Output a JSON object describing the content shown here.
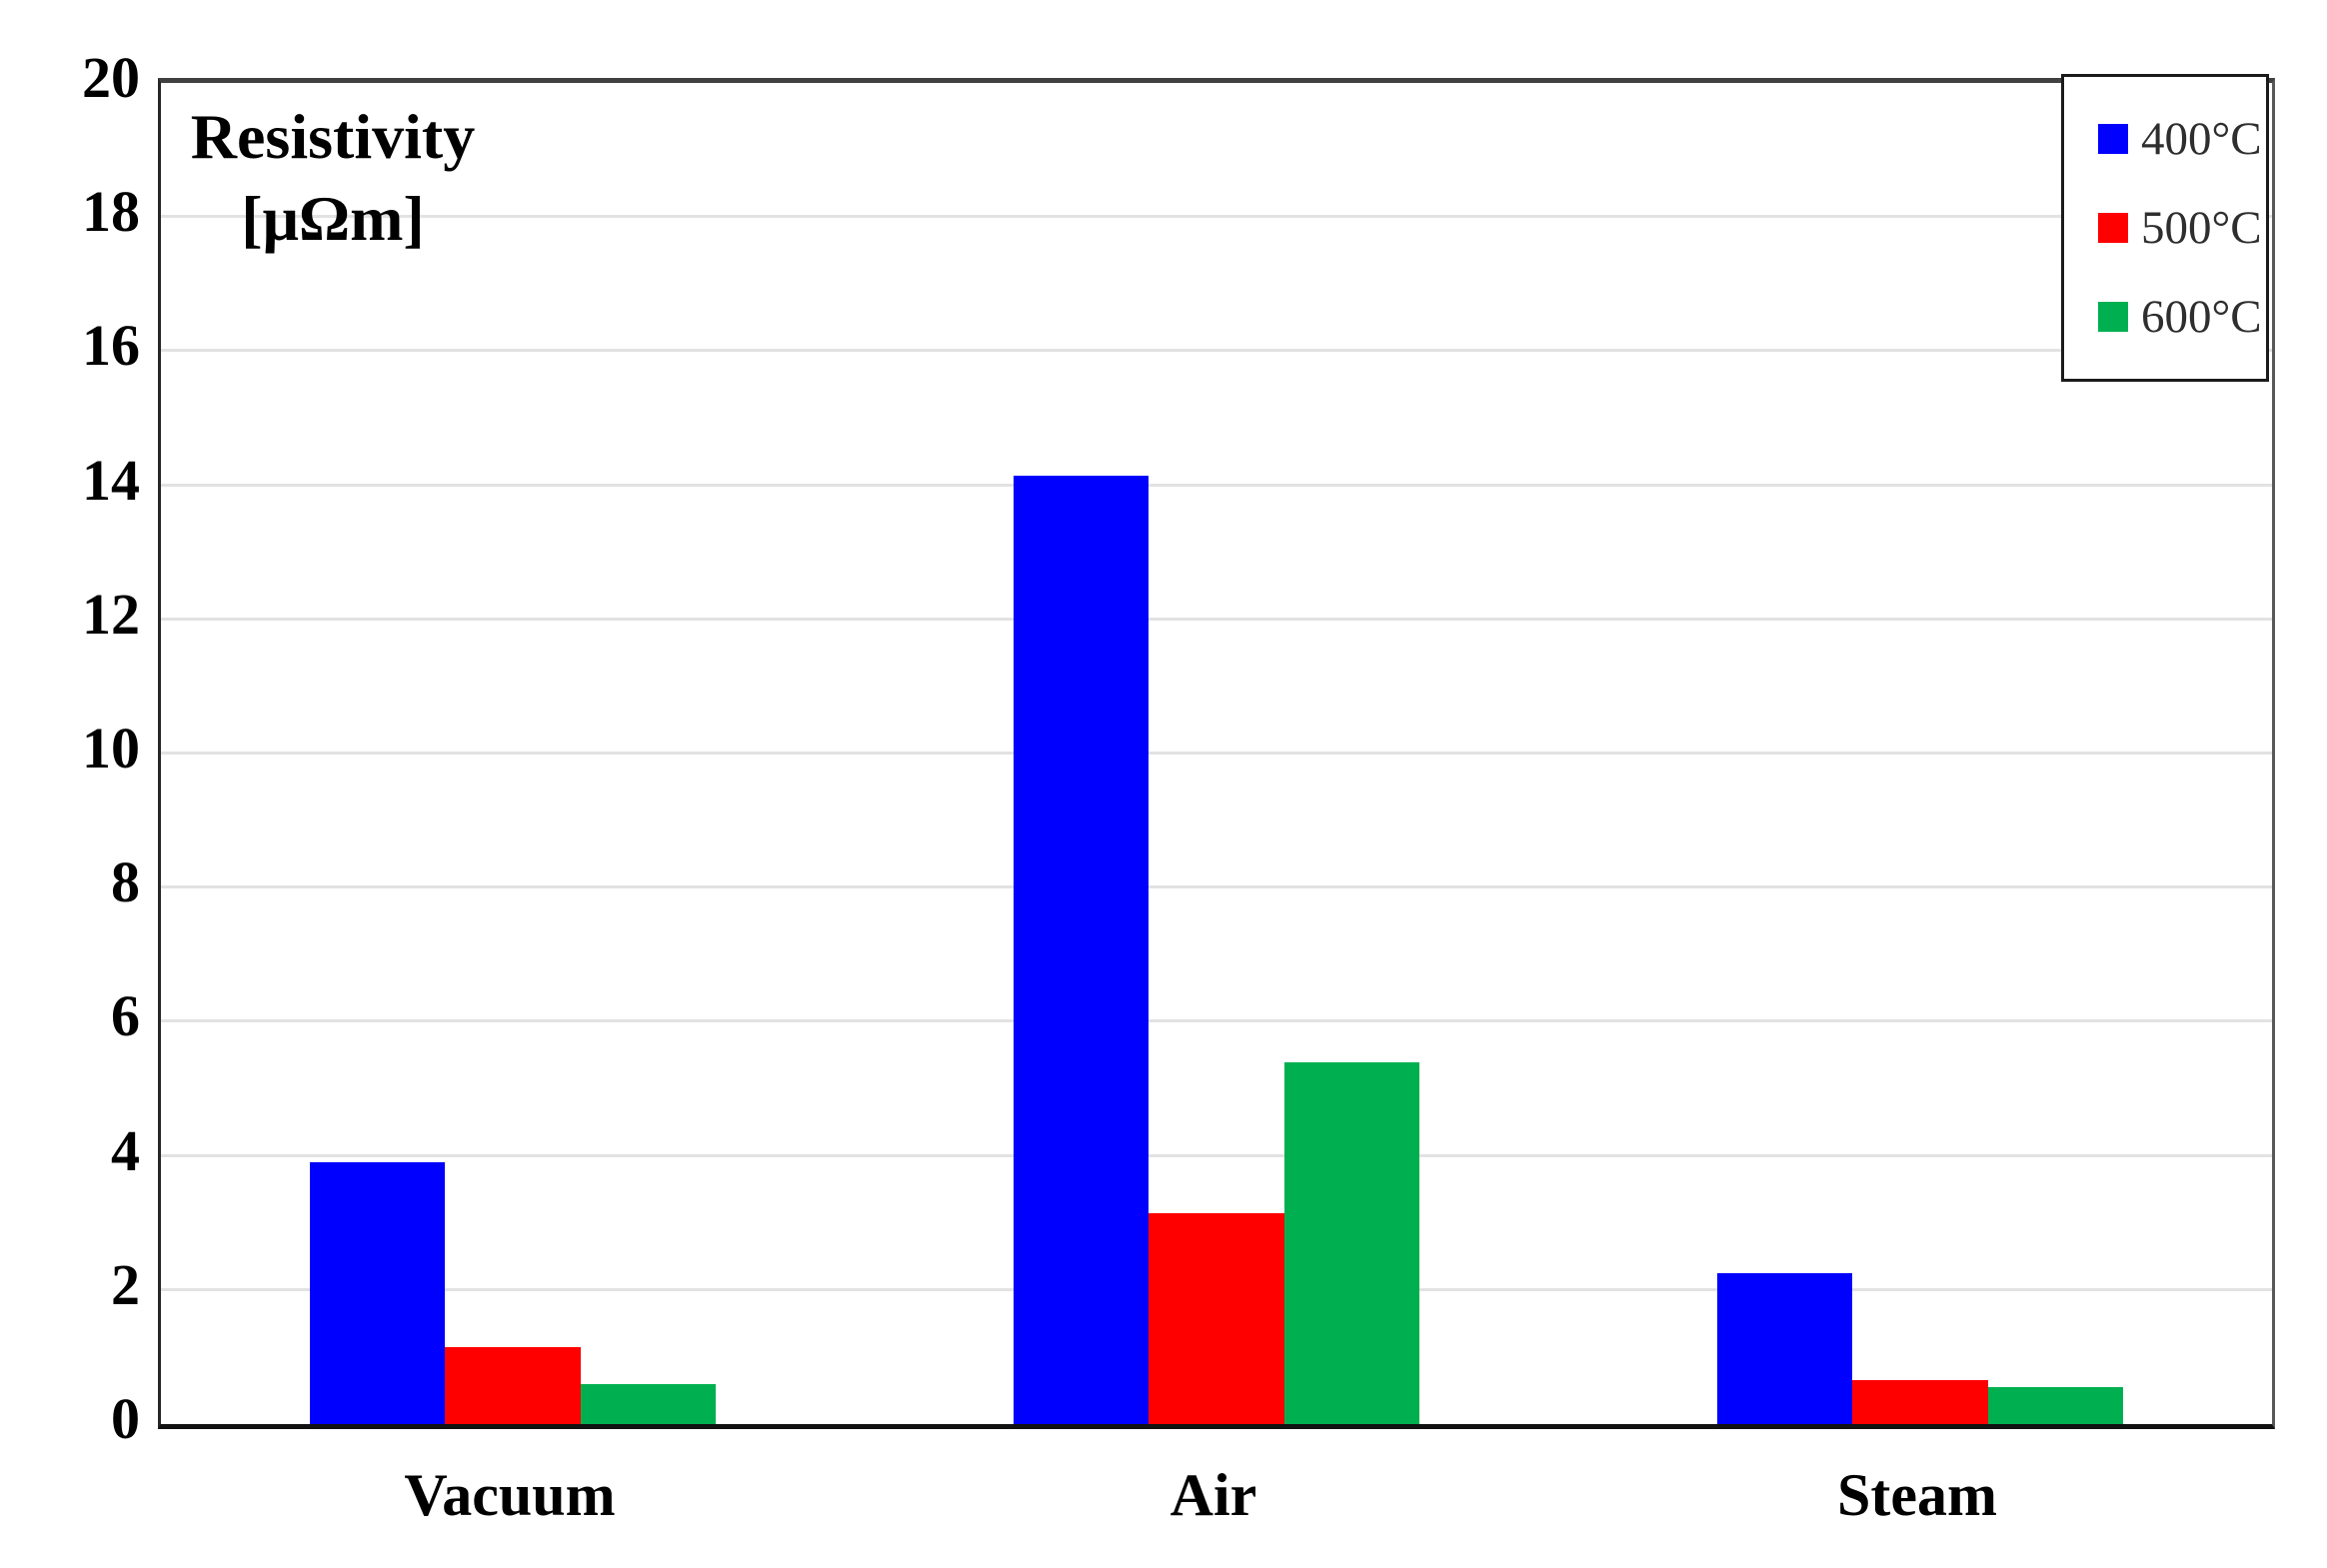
{
  "chart_data": {
    "type": "bar",
    "title_line1": "Resistivity",
    "title_line2": "[μΩm]",
    "ylabel": "Resistivity [μΩm]",
    "categories": [
      "Vacuum",
      "Air",
      "Steam"
    ],
    "series": [
      {
        "name": "400°C",
        "color": "#0000fe",
        "values": [
          3.9,
          14.15,
          2.25
        ]
      },
      {
        "name": "500°C",
        "color": "#fe0000",
        "values": [
          1.15,
          3.15,
          0.65
        ]
      },
      {
        "name": "600°C",
        "color": "#00b050",
        "values": [
          0.6,
          5.4,
          0.55
        ]
      }
    ],
    "ylim": [
      0,
      20
    ],
    "yticks": [
      "20",
      "18",
      "16",
      "14",
      "12",
      "10",
      "8",
      "6",
      "4",
      "2",
      "0"
    ],
    "ytick_step": 2,
    "grid": true,
    "legend_position": "top-right",
    "colors": {
      "gridline": "#e2e2e2",
      "axis": "#262626",
      "text": "#000000",
      "background": "#ffffff"
    }
  }
}
